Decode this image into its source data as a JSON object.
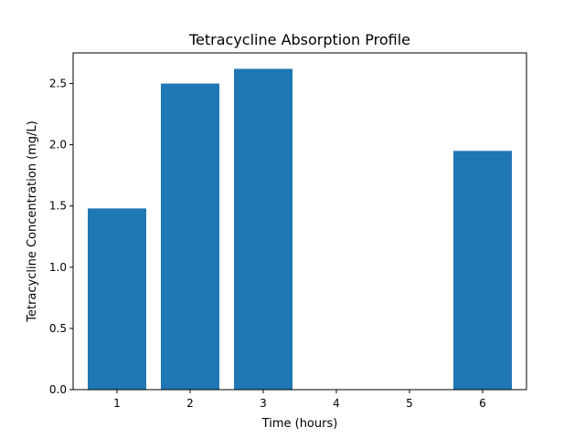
{
  "chart_data": {
    "type": "bar",
    "title": "Tetracycline Absorption Profile",
    "xlabel": "Time (hours)",
    "ylabel": "Tetracycline Concentration (mg/L)",
    "x": [
      1,
      2,
      3,
      4,
      5,
      6
    ],
    "values": [
      1.48,
      2.5,
      2.62,
      0,
      0,
      1.95
    ],
    "xlim": [
      0.4,
      6.6
    ],
    "ylim": [
      0,
      2.75
    ],
    "yticks": [
      "0.0",
      "0.5",
      "1.0",
      "1.5",
      "2.0",
      "2.5"
    ],
    "xticks": [
      "1",
      "2",
      "3",
      "4",
      "5",
      "6"
    ],
    "bar_color": "#1f77b4",
    "grid": false,
    "legend": false
  }
}
